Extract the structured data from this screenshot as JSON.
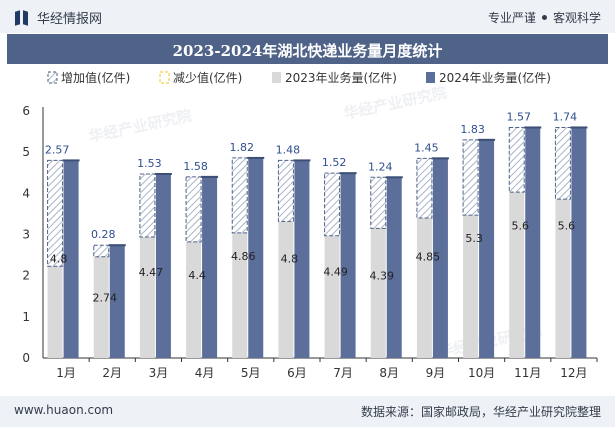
{
  "header": {
    "brand": "华经情报网",
    "tagline_left": "专业严谨",
    "tagline_right": "客观科学"
  },
  "chart_title": "2023-2024年湖北快递业务量月度统计",
  "footer": {
    "website": "www.huaon.com",
    "source": "数据来源：国家邮政局，华经产业研究院整理"
  },
  "watermark": "华经产业研究院",
  "colors": {
    "series_2023": "#d9d9d9",
    "series_2024": "#5b6f9a",
    "increase_stroke": "#4f6287",
    "decrease_stroke": "#f0c419",
    "title_bar": "#4f6287",
    "header_bg": "#eef2f7"
  },
  "chart_data": {
    "type": "bar",
    "categories": [
      "1月",
      "2月",
      "3月",
      "4月",
      "5月",
      "6月",
      "7月",
      "8月",
      "9月",
      "10月",
      "11月",
      "12月"
    ],
    "ylim": [
      0,
      6
    ],
    "yticks": [
      0,
      1,
      2,
      3,
      4,
      5,
      6
    ],
    "legend": {
      "position": "top-left",
      "items": [
        "增加值(亿件)",
        "减少值(亿件)",
        "2023年业务量(亿件)",
        "2024年业务量(亿件)"
      ]
    },
    "series": [
      {
        "name": "2023年业务量(亿件)",
        "values": [
          2.23,
          2.46,
          2.94,
          2.82,
          3.04,
          3.32,
          2.97,
          3.15,
          3.4,
          3.47,
          4.03,
          3.86
        ]
      },
      {
        "name": "2024年业务量(亿件)",
        "values": [
          4.8,
          2.74,
          4.47,
          4.4,
          4.86,
          4.8,
          4.49,
          4.39,
          4.85,
          5.3,
          5.6,
          5.6
        ]
      },
      {
        "name": "增加值(亿件)",
        "values": [
          2.57,
          0.28,
          1.53,
          1.58,
          1.82,
          1.48,
          1.52,
          1.24,
          1.45,
          1.83,
          1.57,
          1.74
        ]
      }
    ],
    "data_labels_2024": [
      "4.8",
      "2.74",
      "4.47",
      "4.4",
      "4.86",
      "4.8",
      "4.49",
      "4.39",
      "4.85",
      "5.3",
      "5.6",
      "5.6"
    ],
    "data_labels_increase": [
      "2.57",
      "0.28",
      "1.53",
      "1.58",
      "1.82",
      "1.48",
      "1.52",
      "1.24",
      "1.45",
      "1.83",
      "1.57",
      "1.74"
    ]
  }
}
